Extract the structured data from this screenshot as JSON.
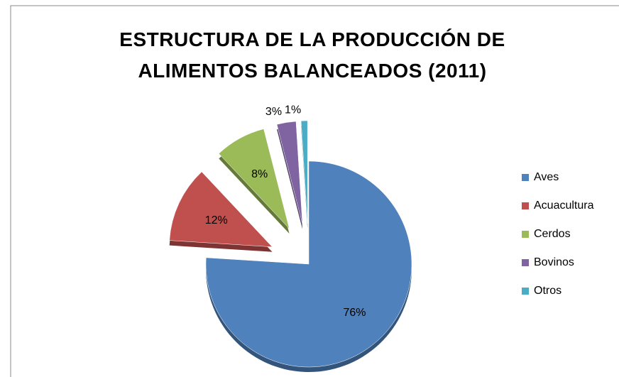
{
  "chart_data": {
    "type": "pie",
    "title": "ESTRUCTURA DE LA PRODUCCIÓN DE ALIMENTOS BALANCEADOS (2011)",
    "categories": [
      "Aves",
      "Acuacultura",
      "Cerdos",
      "Bovinos",
      "Otros"
    ],
    "values": [
      76,
      12,
      8,
      3,
      1
    ],
    "value_labels": [
      "76%",
      "12%",
      "8%",
      "3%",
      "1%"
    ],
    "colors": [
      "#4f81bd",
      "#c0504d",
      "#9bbb59",
      "#8064a2",
      "#4bacc6"
    ],
    "legend": "right"
  }
}
